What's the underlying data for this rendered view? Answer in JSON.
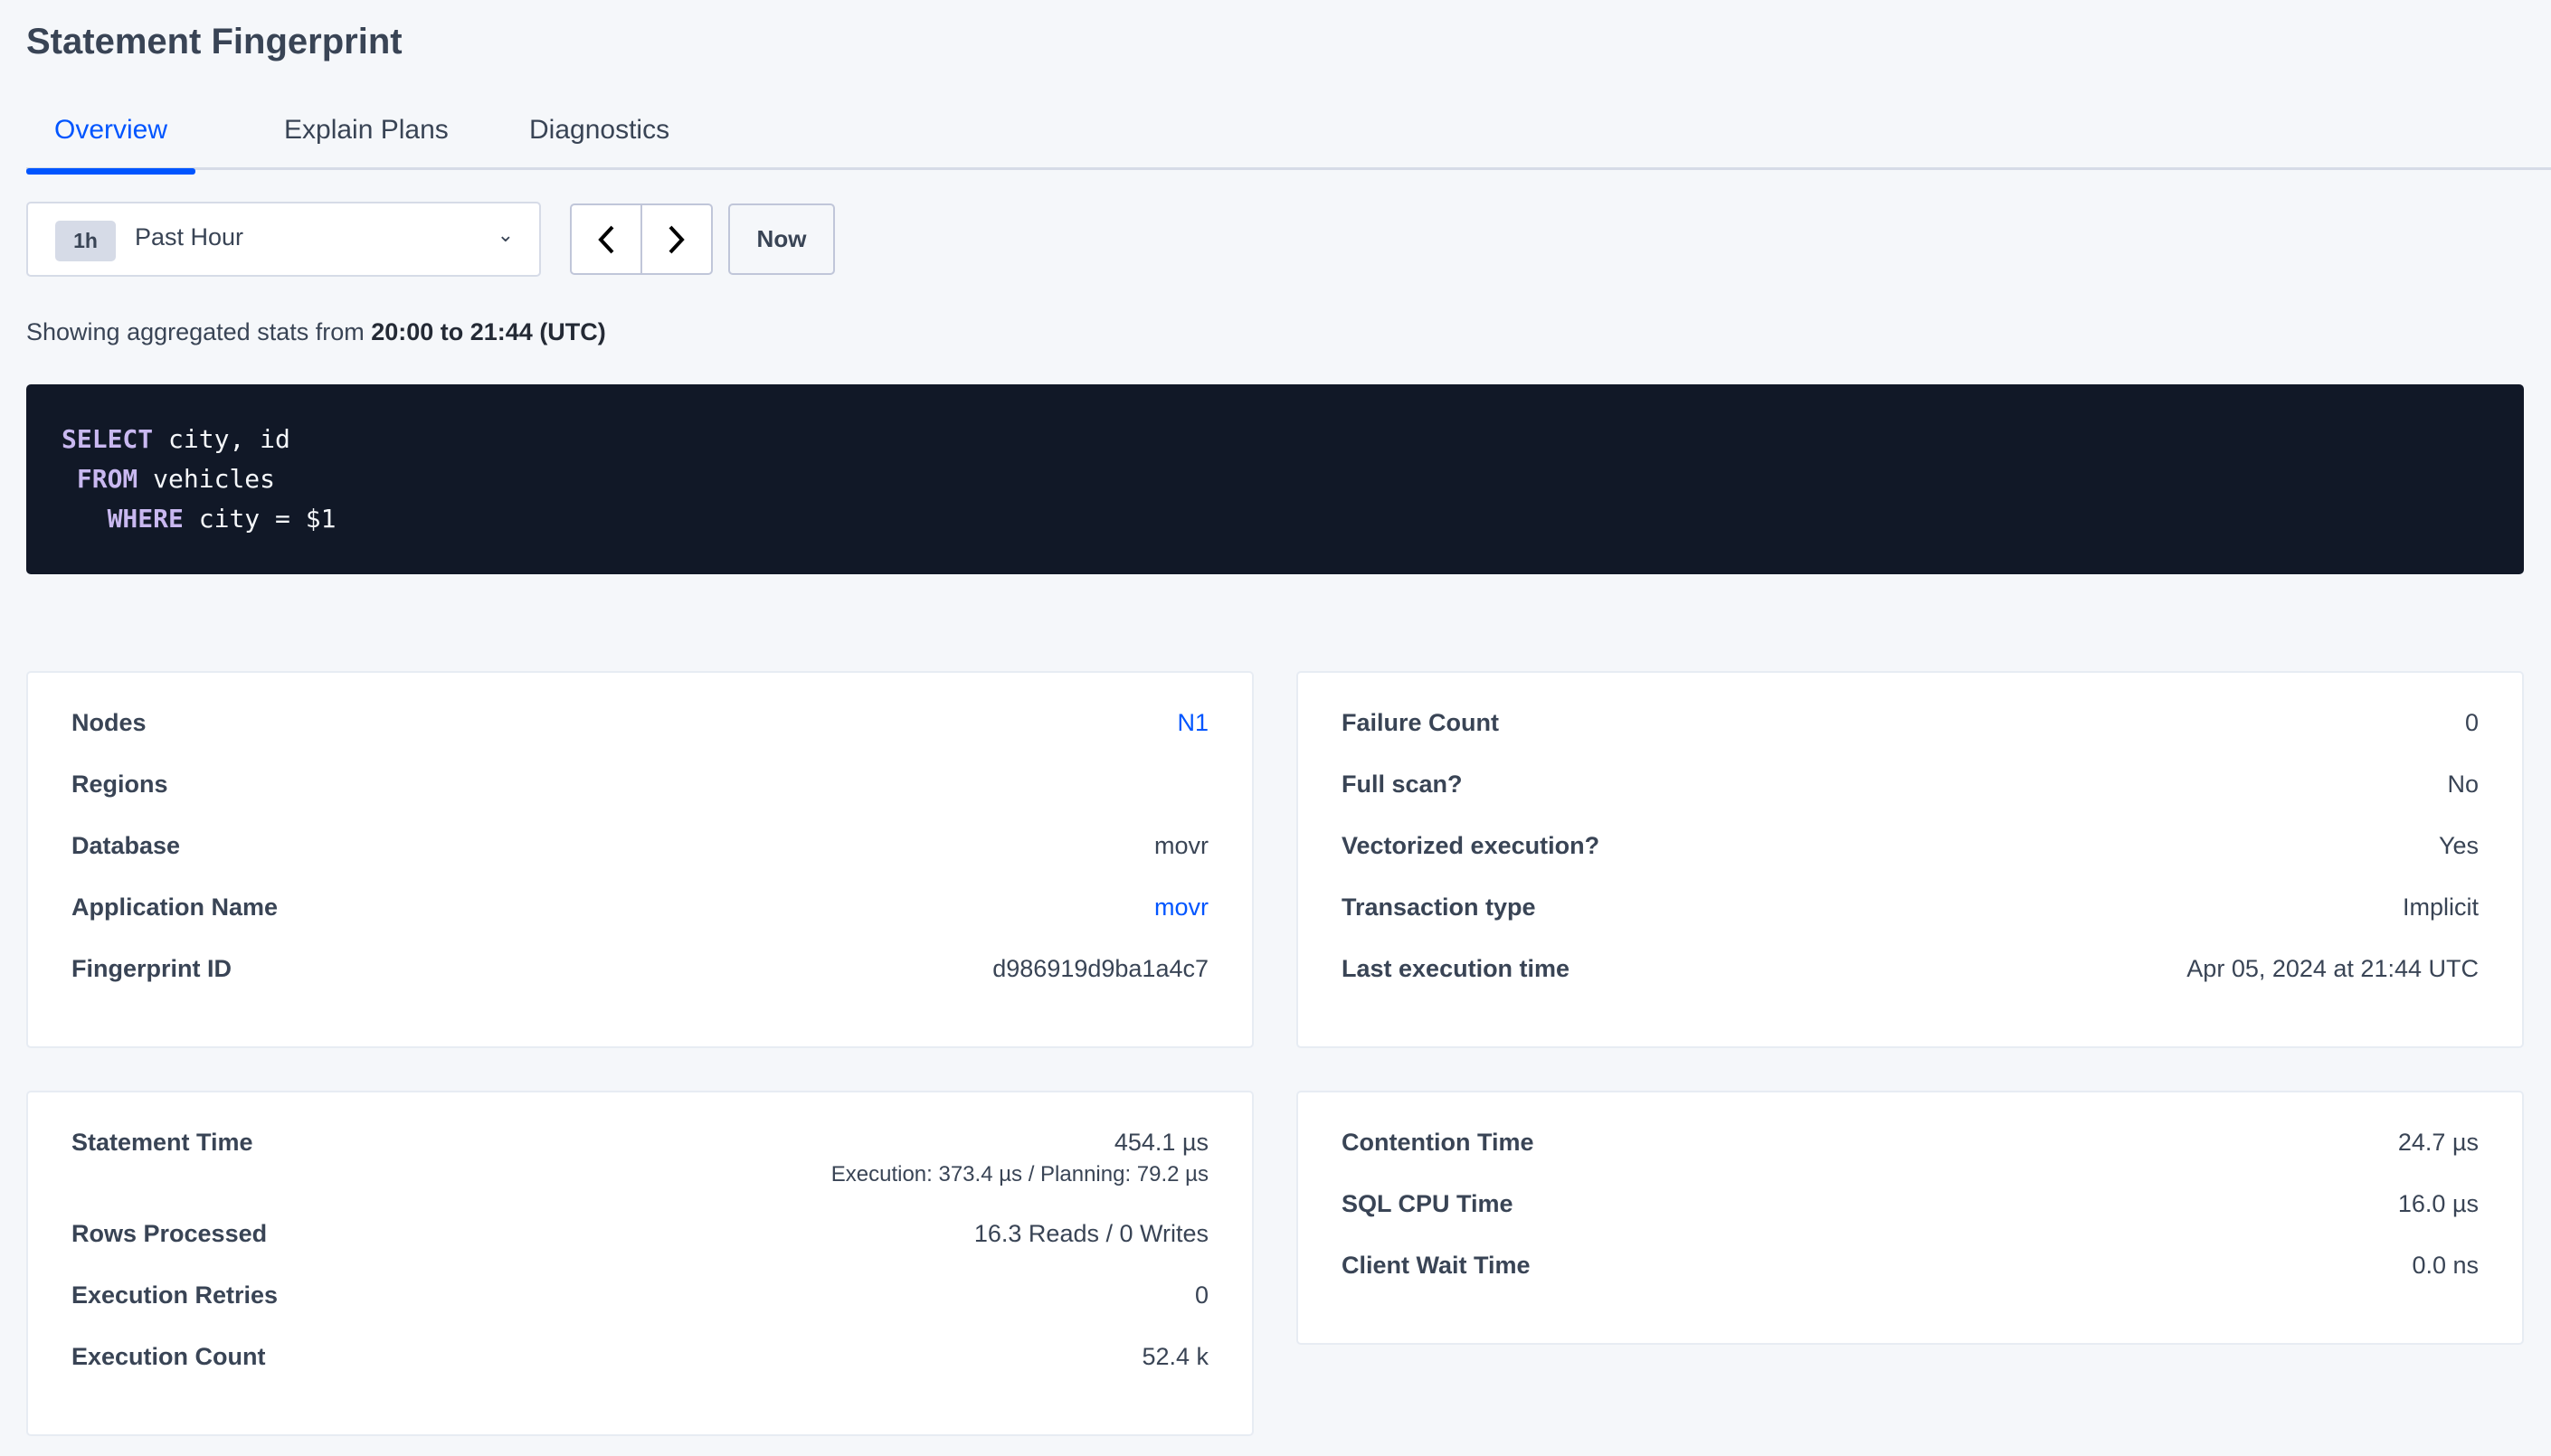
{
  "header": {
    "title": "Statement Fingerprint"
  },
  "tabs": [
    {
      "label": "Overview",
      "active": true
    },
    {
      "label": "Explain Plans"
    },
    {
      "label": "Diagnostics"
    }
  ],
  "time_picker": {
    "badge": "1h",
    "selected": "Past Hour",
    "prev_icon": "chevron-left",
    "next_icon": "chevron-right",
    "now_label": "Now"
  },
  "summary": {
    "prefix": "Showing aggregated stats from ",
    "range": "20:00 to 21:44 (UTC)"
  },
  "query": {
    "lines": [
      {
        "indent": "",
        "keyword": "SELECT",
        "rest": " city, id"
      },
      {
        "indent": " ",
        "keyword": "FROM",
        "rest": " vehicles"
      },
      {
        "indent": "   ",
        "keyword": "WHERE",
        "rest": " city = $1"
      }
    ]
  },
  "card_info": [
    {
      "label": "Nodes",
      "value": "N1",
      "link": true
    },
    {
      "label": "Regions",
      "value": ""
    },
    {
      "label": "Database",
      "value": "movr"
    },
    {
      "label": "Application Name",
      "value": "movr",
      "link": true
    },
    {
      "label": "Fingerprint ID",
      "value": "d986919d9ba1a4c7"
    }
  ],
  "card_exec": [
    {
      "label": "Failure Count",
      "value": "0"
    },
    {
      "label": "Full scan?",
      "value": "No"
    },
    {
      "label": "Vectorized execution?",
      "value": "Yes"
    },
    {
      "label": "Transaction type",
      "value": "Implicit"
    },
    {
      "label": "Last execution time",
      "value": "Apr 05, 2024 at 21:44 UTC"
    }
  ],
  "card_stats": [
    {
      "label": "Statement Time",
      "value": "454.1 µs",
      "sub": "Execution: 373.4 µs / Planning: 79.2 µs"
    },
    {
      "label": "Rows Processed",
      "value": "16.3 Reads / 0 Writes"
    },
    {
      "label": "Execution Retries",
      "value": "0"
    },
    {
      "label": "Execution Count",
      "value": "52.4 k"
    }
  ],
  "card_time": [
    {
      "label": "Contention Time",
      "value": "24.7 µs"
    },
    {
      "label": "SQL CPU Time",
      "value": "16.0 µs"
    },
    {
      "label": "Client Wait Time",
      "value": "0.0 ns"
    }
  ],
  "colors": {
    "accent": "#0055ff",
    "code_bg": "#111827",
    "keyword": "#c9b8f0"
  }
}
